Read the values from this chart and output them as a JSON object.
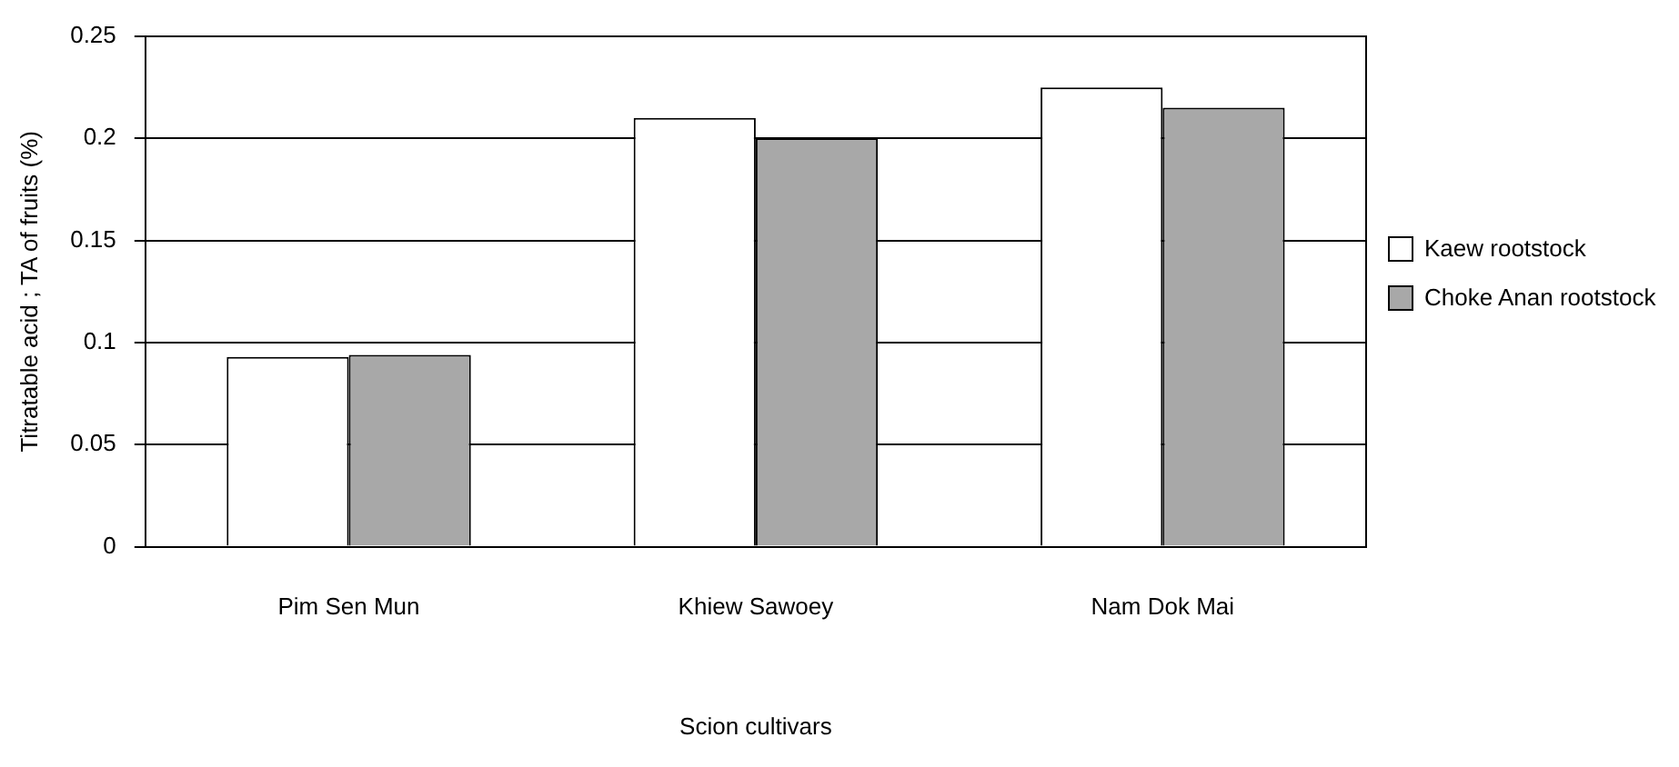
{
  "chart_data": {
    "type": "bar",
    "xlabel": "Scion cultivars",
    "ylabel": "Titratable acid ; TA of fruits (%)",
    "categories": [
      "Pim Sen Mun",
      "Khiew Sawoey",
      "Nam Dok Mai"
    ],
    "series": [
      {
        "name": "Kaew rootstock",
        "color": "#ffffff",
        "values": [
          0.093,
          0.21,
          0.225
        ]
      },
      {
        "name": "Choke Anan rootstock",
        "color": "#a8a8a8",
        "values": [
          0.094,
          0.2,
          0.215
        ]
      }
    ],
    "ylim": [
      0,
      0.25
    ],
    "yticks": [
      0,
      0.05,
      0.1,
      0.15,
      0.2,
      0.25
    ],
    "grid": "y",
    "legend": "right"
  }
}
